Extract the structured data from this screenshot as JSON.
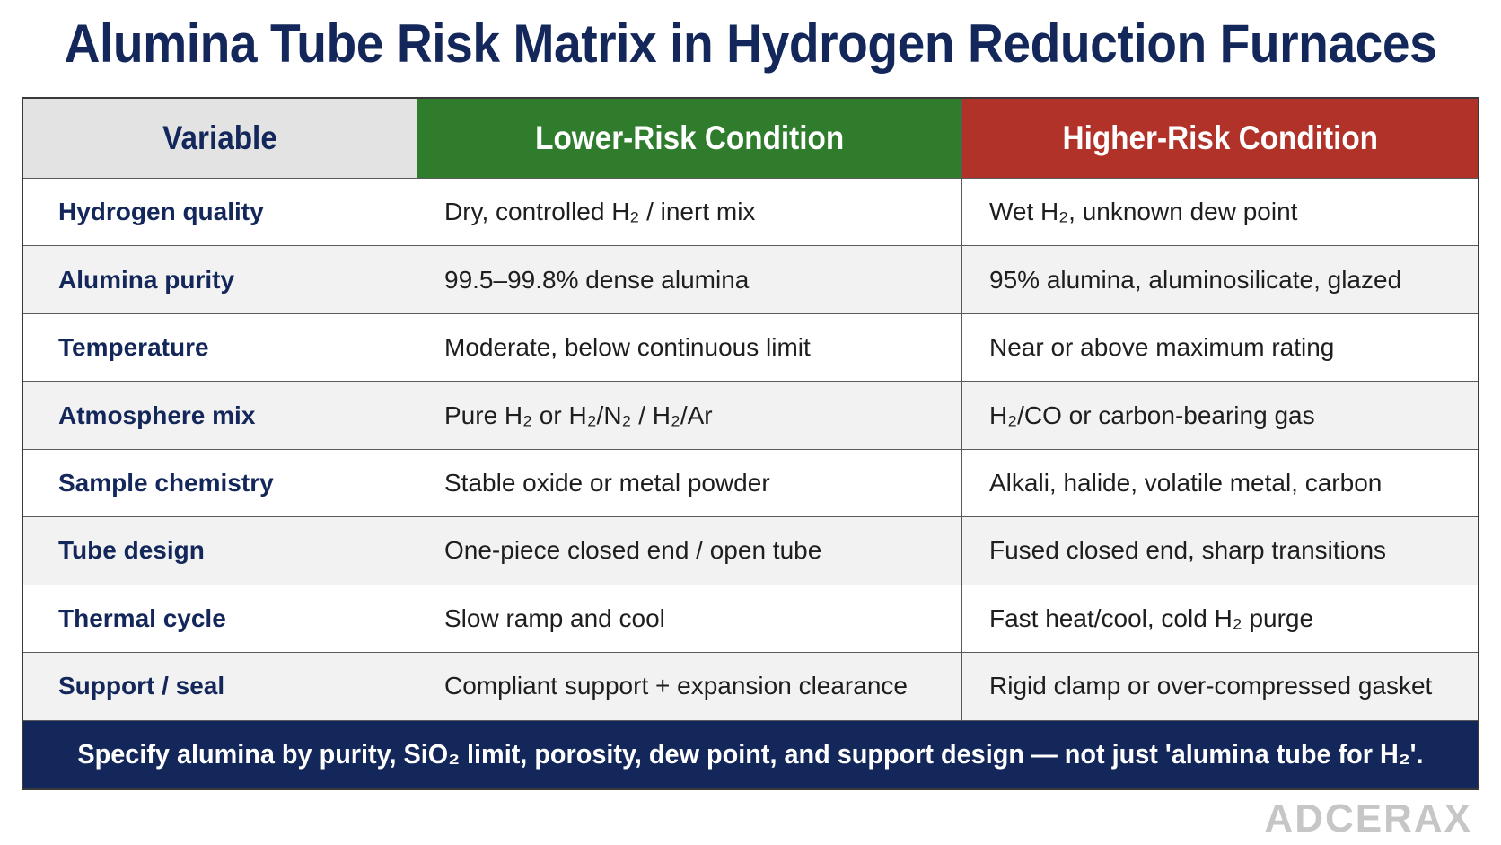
{
  "title": "Alumina Tube Risk Matrix in Hydrogen Reduction Furnaces",
  "table": {
    "headers": {
      "variable": "Variable",
      "lower": "Lower-Risk Condition",
      "higher": "Higher-Risk Condition"
    },
    "rows": [
      {
        "variable": "Hydrogen quality",
        "lower": "Dry, controlled H₂ / inert mix",
        "higher": "Wet H₂, unknown dew point"
      },
      {
        "variable": "Alumina purity",
        "lower": "99.5–99.8% dense alumina",
        "higher": "95% alumina, aluminosilicate, glazed"
      },
      {
        "variable": "Temperature",
        "lower": "Moderate, below continuous limit",
        "higher": "Near or above maximum rating"
      },
      {
        "variable": "Atmosphere mix",
        "lower": "Pure H₂ or H₂/N₂ / H₂/Ar",
        "higher": "H₂/CO or carbon-bearing gas"
      },
      {
        "variable": "Sample chemistry",
        "lower": "Stable oxide or metal powder",
        "higher": "Alkali, halide, volatile metal, carbon"
      },
      {
        "variable": "Tube design",
        "lower": "One-piece closed end / open tube",
        "higher": "Fused closed end, sharp transitions"
      },
      {
        "variable": "Thermal cycle",
        "lower": "Slow ramp and cool",
        "higher": "Fast heat/cool, cold H₂ purge"
      },
      {
        "variable": "Support / seal",
        "lower": "Compliant support + expansion clearance",
        "higher": "Rigid clamp or over-compressed gasket"
      }
    ],
    "footer_note": "Specify alumina by purity, SiO₂ limit, porosity, dew point, and support design — not just 'alumina tube for H₂'."
  },
  "brand": "ADCERAX",
  "colors": {
    "title": "#14275a",
    "lower_header": "#2f7d2c",
    "higher_header": "#b03228",
    "variable_header": "#e3e3e3",
    "footer_band": "#14275a"
  }
}
